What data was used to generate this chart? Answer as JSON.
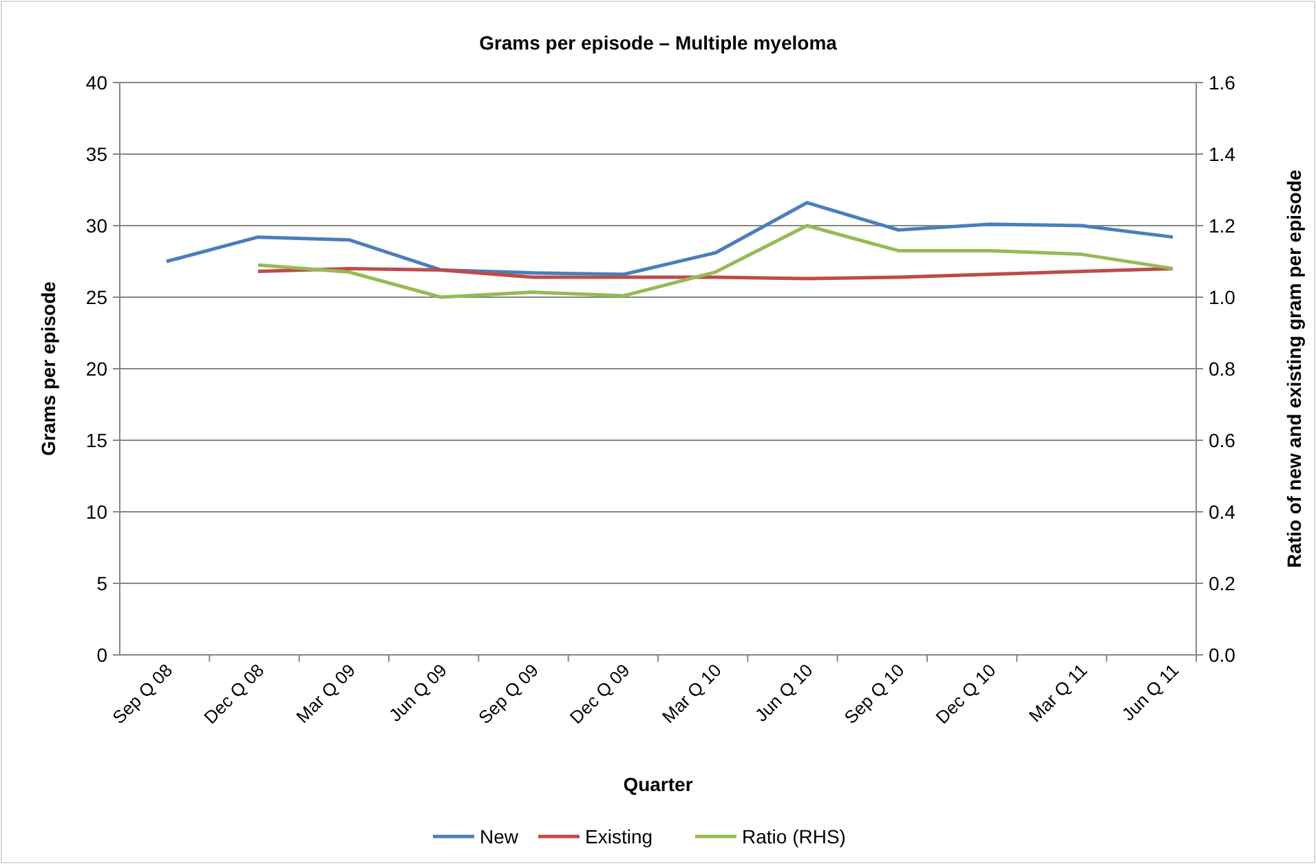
{
  "chart_data": {
    "type": "line",
    "title": "Grams per episode – Multiple myeloma",
    "xlabel": "Quarter",
    "ylabel": "Grams per episode",
    "y2label": "Ratio of new and existing gram per episode",
    "categories": [
      "Sep Q 08",
      "Dec Q 08",
      "Mar Q 09",
      "Jun Q 09",
      "Sep Q 09",
      "Dec Q 09",
      "Mar Q 10",
      "Jun Q 10",
      "Sep Q 10",
      "Dec Q 10",
      "Mar Q 11",
      "Jun Q 11"
    ],
    "series": [
      {
        "name": "New",
        "color": "#4a7ebb",
        "values": [
          27.5,
          29.2,
          29.0,
          26.9,
          26.7,
          26.6,
          28.1,
          31.6,
          29.7,
          30.1,
          30.0,
          29.2
        ]
      },
      {
        "name": "Existing",
        "color": "#be4b48",
        "values": [
          null,
          26.8,
          27.0,
          26.9,
          26.4,
          26.4,
          26.4,
          26.3,
          26.4,
          26.6,
          26.8,
          27.0
        ]
      },
      {
        "name": "Ratio (RHS)",
        "color": "#98b954",
        "axis": "y2",
        "values": [
          null,
          1.09,
          1.07,
          1.0,
          1.014,
          1.004,
          1.07,
          1.2,
          1.13,
          1.13,
          1.12,
          1.08
        ]
      }
    ],
    "ylim": [
      0,
      40
    ],
    "yticks": [
      0,
      5,
      10,
      15,
      20,
      25,
      30,
      35,
      40
    ],
    "y2lim": [
      0,
      1.6
    ],
    "y2ticks": [
      {
        "value": 0,
        "label": "0.0"
      },
      {
        "value": 0.2,
        "label": "0.2"
      },
      {
        "value": 0.4,
        "label": "0.4"
      },
      {
        "value": 0.6,
        "label": "0.6"
      },
      {
        "value": 0.8,
        "label": "0.8"
      },
      {
        "value": 1,
        "label": "1.0"
      },
      {
        "value": 1.2,
        "label": "1.2"
      },
      {
        "value": 1.4,
        "label": "1.4"
      },
      {
        "value": 1.6,
        "label": "1.6"
      }
    ],
    "grid": "y",
    "legend": "bottom",
    "marker": "none",
    "line_style": "solid"
  }
}
